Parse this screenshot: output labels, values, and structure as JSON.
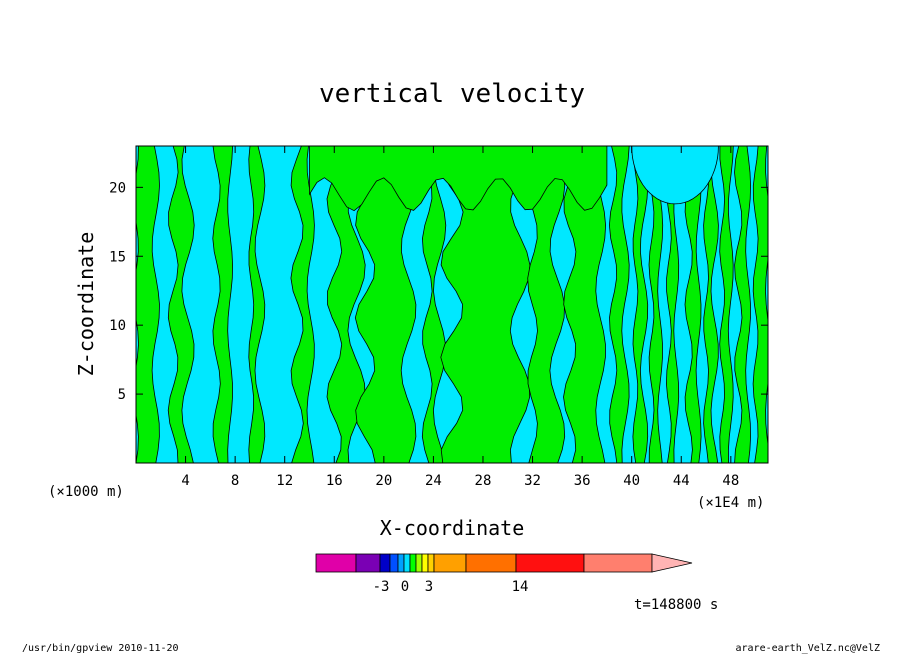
{
  "chart_data": {
    "type": "heatmap",
    "title": "vertical velocity",
    "xlabel": "X-coordinate",
    "ylabel": "Z-coordinate",
    "x_unit_left": "(×1000 m)",
    "x_unit_right": "(×1E4 m)",
    "xlim": [
      0,
      51
    ],
    "ylim": [
      0,
      23
    ],
    "x_ticks": [
      4,
      8,
      12,
      16,
      20,
      24,
      28,
      32,
      36,
      40,
      44,
      48
    ],
    "y_ticks": [
      5,
      10,
      15,
      20
    ],
    "colorbar": {
      "colors": [
        "#e000a8",
        "#7a00b4",
        "#0000c8",
        "#0050ff",
        "#00a0ff",
        "#00e0ff",
        "#00ff00",
        "#a0ff00",
        "#ffff00",
        "#ffd000",
        "#ffa000",
        "#ff7000",
        "#ff1010",
        "#ff7f6e",
        "#ffb4b4"
      ],
      "tick_labels": [
        "-3",
        "0",
        "3",
        "14"
      ]
    },
    "colors": {
      "negative": "#00e8ff",
      "positive": "#00ee00",
      "contour": "#000000"
    }
  },
  "annotations": {
    "time": "t=148800 s",
    "footer_left": "/usr/bin/gpview   2010-11-20",
    "footer_right": "arare-earth_VelZ.nc@VelZ"
  }
}
